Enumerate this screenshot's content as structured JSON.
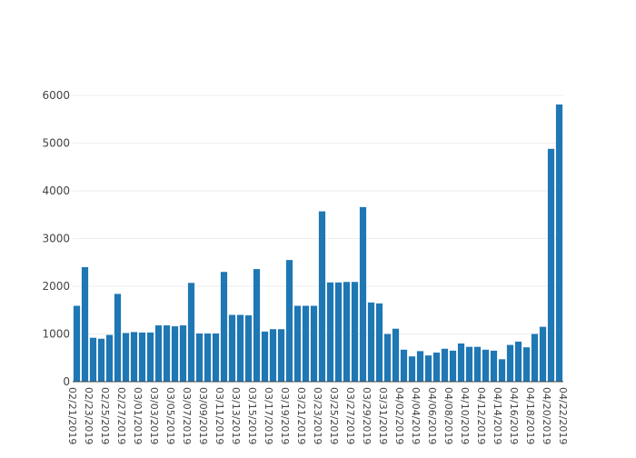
{
  "chart_data": {
    "type": "bar",
    "title": "",
    "xlabel": "",
    "ylabel": "",
    "ylim": [
      0,
      6000
    ],
    "y_ticks": [
      0,
      1000,
      2000,
      3000,
      4000,
      5000,
      6000
    ],
    "grid": true,
    "legend": "none",
    "bar_color": "#1f77b4",
    "x_tick_labels": [
      "02/21/2019",
      "02/23/2019",
      "02/25/2019",
      "02/27/2019",
      "03/01/2019",
      "03/03/2019",
      "03/05/2019",
      "03/07/2019",
      "03/09/2019",
      "03/11/2019",
      "03/13/2019",
      "03/15/2019",
      "03/17/2019",
      "03/19/2019",
      "03/21/2019",
      "03/23/2019",
      "03/25/2019",
      "03/27/2019",
      "03/29/2019",
      "03/31/2019",
      "04/02/2019",
      "04/04/2019",
      "04/06/2019",
      "04/08/2019",
      "04/10/2019",
      "04/12/2019",
      "04/14/2019",
      "04/16/2019",
      "04/18/2019",
      "04/20/2019",
      "04/22/2019"
    ],
    "categories": [
      "02/21/2019",
      "02/22/2019",
      "02/23/2019",
      "02/24/2019",
      "02/25/2019",
      "02/26/2019",
      "02/27/2019",
      "02/28/2019",
      "03/01/2019",
      "03/02/2019",
      "03/03/2019",
      "03/04/2019",
      "03/05/2019",
      "03/06/2019",
      "03/07/2019",
      "03/08/2019",
      "03/09/2019",
      "03/10/2019",
      "03/11/2019",
      "03/12/2019",
      "03/13/2019",
      "03/14/2019",
      "03/15/2019",
      "03/16/2019",
      "03/17/2019",
      "03/18/2019",
      "03/19/2019",
      "03/20/2019",
      "03/21/2019",
      "03/22/2019",
      "03/23/2019",
      "03/24/2019",
      "03/25/2019",
      "03/26/2019",
      "03/27/2019",
      "03/28/2019",
      "03/29/2019",
      "03/30/2019",
      "03/31/2019",
      "04/01/2019",
      "04/02/2019",
      "04/03/2019",
      "04/04/2019",
      "04/05/2019",
      "04/06/2019",
      "04/07/2019",
      "04/08/2019",
      "04/09/2019",
      "04/10/2019",
      "04/11/2019",
      "04/12/2019",
      "04/13/2019",
      "04/14/2019",
      "04/15/2019",
      "04/16/2019",
      "04/17/2019",
      "04/18/2019",
      "04/19/2019",
      "04/20/2019",
      "04/21/2019"
    ],
    "values": [
      1590,
      2400,
      920,
      900,
      980,
      1840,
      1020,
      1040,
      1030,
      1030,
      1180,
      1180,
      1160,
      1180,
      2070,
      1010,
      1010,
      1010,
      2300,
      1400,
      1400,
      1390,
      2360,
      1050,
      1100,
      1100,
      2550,
      1590,
      1590,
      1590,
      3570,
      2080,
      2080,
      2090,
      2090,
      3660,
      1660,
      1640,
      1000,
      1110,
      670,
      530,
      640,
      550,
      610,
      690,
      650,
      800,
      730,
      730,
      670,
      650,
      470,
      770,
      840,
      720,
      1000,
      1150,
      4880,
      5810
    ]
  }
}
